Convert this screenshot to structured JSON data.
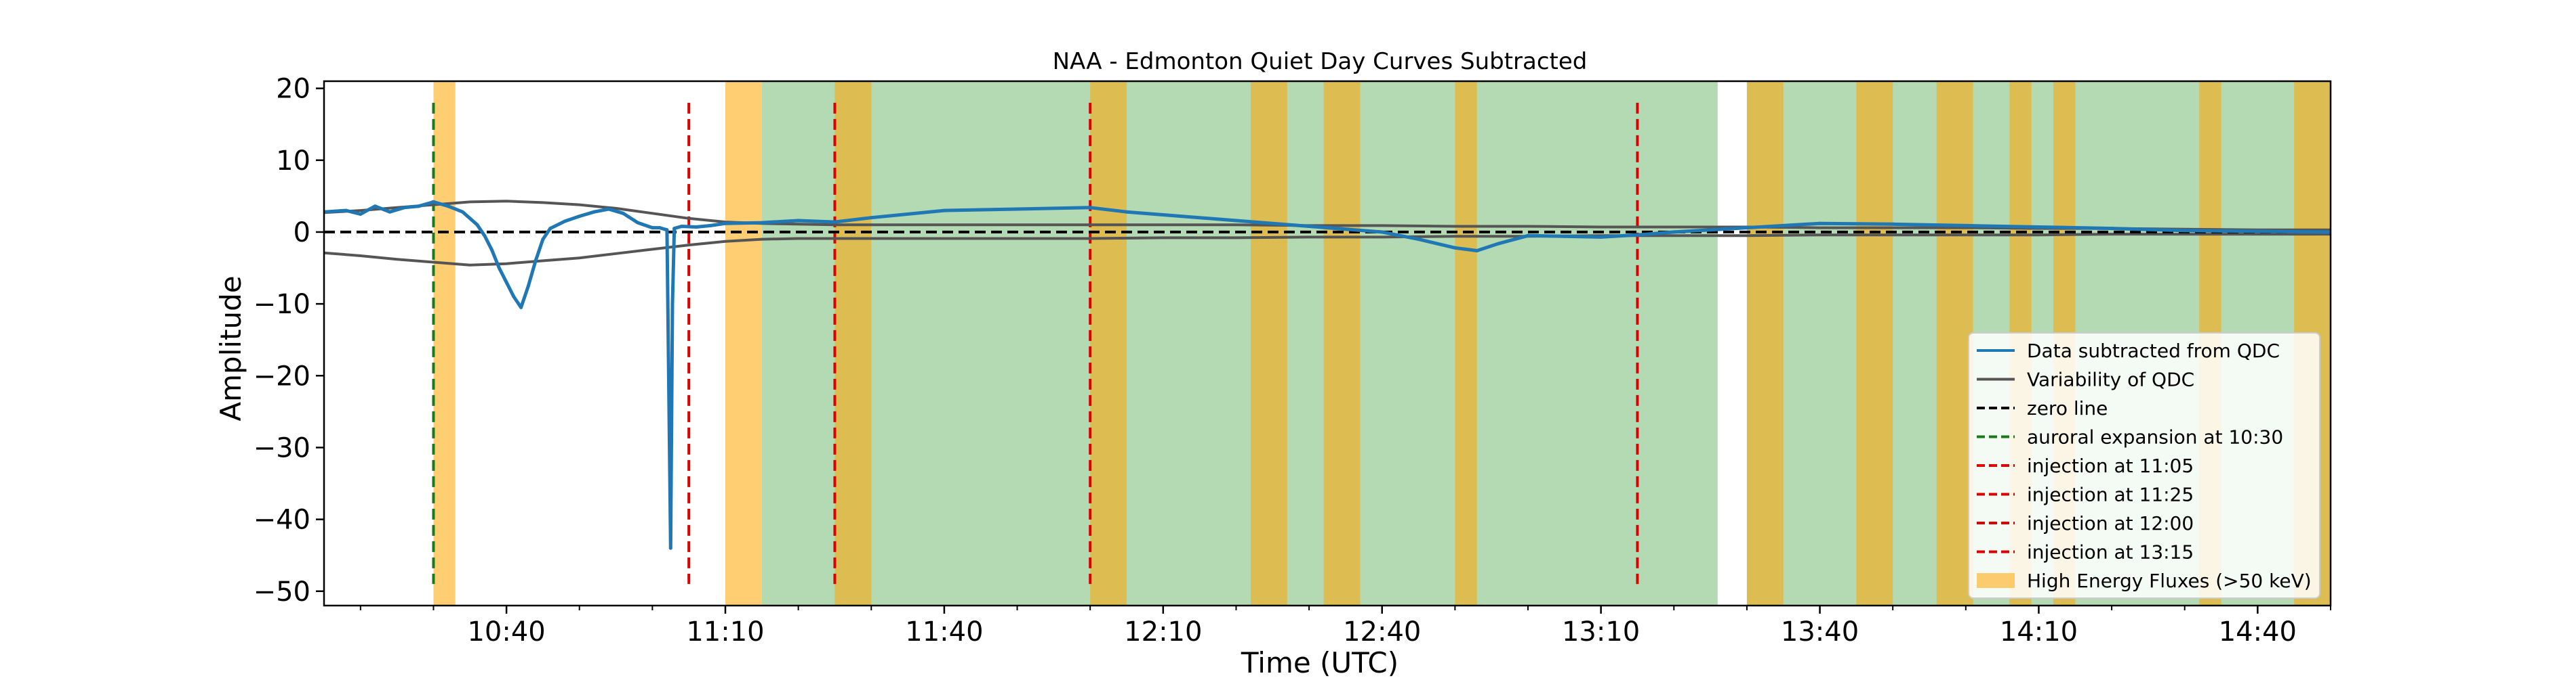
{
  "chart_data": {
    "type": "line",
    "title": "NAA - Edmonton  Quiet Day Curves Subtracted",
    "xlabel": "Time (UTC)",
    "ylabel": "Amplitude",
    "x_unit": "UTC time (HH:MM)",
    "xlim": [
      "10:15",
      "14:50"
    ],
    "ylim": [
      -52,
      21
    ],
    "x_ticks": [
      {
        "value": "10:40",
        "label": "10:40"
      },
      {
        "value": "11:10",
        "label": "11:10"
      },
      {
        "value": "11:40",
        "label": "11:40"
      },
      {
        "value": "12:10",
        "label": "12:10"
      },
      {
        "value": "12:40",
        "label": "12:40"
      },
      {
        "value": "13:10",
        "label": "13:10"
      },
      {
        "value": "13:40",
        "label": "13:40"
      },
      {
        "value": "14:10",
        "label": "14:10"
      },
      {
        "value": "14:40",
        "label": "14:40"
      }
    ],
    "y_ticks": [
      {
        "value": 20,
        "label": "20"
      },
      {
        "value": 10,
        "label": "10"
      },
      {
        "value": 0,
        "label": "0"
      },
      {
        "value": -10,
        "label": "−10"
      },
      {
        "value": -20,
        "label": "−20"
      },
      {
        "value": -30,
        "label": "−30"
      },
      {
        "value": -40,
        "label": "−40"
      },
      {
        "value": -50,
        "label": "−50"
      }
    ],
    "grid": false,
    "legend_position": "lower right",
    "colors": {
      "data": "#1f77b4",
      "variability": "#555555",
      "zero": "#000000",
      "auroral": "#1a7a1a",
      "injection": "#dd0000",
      "hef": "#ffa500",
      "background": "#4aa64a"
    },
    "background_spans": [
      {
        "start": "11:15",
        "end": "13:26"
      },
      {
        "start": "13:30",
        "end": "14:50"
      }
    ],
    "high_energy_spans": [
      {
        "start": "10:30",
        "end": "10:33"
      },
      {
        "start": "11:10",
        "end": "11:15"
      },
      {
        "start": "11:25",
        "end": "11:30"
      },
      {
        "start": "12:00",
        "end": "12:05"
      },
      {
        "start": "12:22",
        "end": "12:27"
      },
      {
        "start": "12:32",
        "end": "12:37"
      },
      {
        "start": "12:50",
        "end": "12:53"
      },
      {
        "start": "13:30",
        "end": "13:35"
      },
      {
        "start": "13:45",
        "end": "13:50"
      },
      {
        "start": "13:56",
        "end": "14:01"
      },
      {
        "start": "14:06",
        "end": "14:09"
      },
      {
        "start": "14:12",
        "end": "14:15"
      },
      {
        "start": "14:32",
        "end": "14:35"
      },
      {
        "start": "14:45",
        "end": "14:50"
      }
    ],
    "vertical_lines": [
      {
        "time": "10:30",
        "ymin": -49,
        "ymax": 18,
        "color": "#1a7a1a",
        "label": "auroral expansion at 10:30"
      },
      {
        "time": "11:05",
        "ymin": -49,
        "ymax": 18,
        "color": "#dd0000",
        "label": "injection at 11:05"
      },
      {
        "time": "11:25",
        "ymin": -49,
        "ymax": 18,
        "color": "#dd0000",
        "label": "injection at 11:25"
      },
      {
        "time": "12:00",
        "ymin": -49,
        "ymax": 18,
        "color": "#dd0000",
        "label": "injection at 12:00"
      },
      {
        "time": "13:15",
        "ymin": -49,
        "ymax": 18,
        "color": "#dd0000",
        "label": "injection at 13:15"
      }
    ],
    "series": [
      {
        "name": "Data subtracted from QDC",
        "x": [
          "10:15",
          "10:18",
          "10:20",
          "10:22",
          "10:24",
          "10:26",
          "10:28",
          "10:30",
          "10:32",
          "10:34",
          "10:36",
          "10:37",
          "10:38",
          "10:39",
          "10:40",
          "10:41",
          "10:42",
          "10:43",
          "10:44",
          "10:45",
          "10:46",
          "10:48",
          "10:50",
          "10:52",
          "10:54",
          "10:56",
          "10:58",
          "11:00",
          "11:01",
          "11:02",
          "11:02:30",
          "11:02:45",
          "11:03",
          "11:04",
          "11:06",
          "11:08",
          "11:10",
          "11:15",
          "11:20",
          "11:25",
          "11:30",
          "11:40",
          "11:50",
          "12:00",
          "12:05",
          "12:10",
          "12:20",
          "12:30",
          "12:40",
          "12:45",
          "12:50",
          "12:53",
          "12:56",
          "13:00",
          "13:05",
          "13:10",
          "13:15",
          "13:20",
          "13:30",
          "13:40",
          "13:50",
          "14:00",
          "14:10",
          "14:20",
          "14:30",
          "14:40",
          "14:50"
        ],
        "values": [
          2.8,
          3.0,
          2.5,
          3.6,
          2.8,
          3.4,
          3.6,
          4.2,
          3.6,
          2.8,
          1.0,
          -0.5,
          -2.5,
          -5.0,
          -7.0,
          -9.0,
          -10.5,
          -7.5,
          -4.0,
          -1.0,
          0.5,
          1.5,
          2.2,
          2.8,
          3.2,
          2.6,
          1.3,
          0.6,
          0.6,
          0.3,
          -44.0,
          -10.0,
          0.5,
          0.8,
          0.7,
          0.9,
          1.2,
          1.3,
          1.6,
          1.4,
          2.0,
          3.0,
          3.2,
          3.4,
          2.8,
          2.4,
          1.6,
          0.8,
          0.0,
          -1.0,
          -2.2,
          -2.6,
          -1.6,
          -0.5,
          -0.6,
          -0.7,
          -0.4,
          0.0,
          0.6,
          1.2,
          1.1,
          0.9,
          0.7,
          0.5,
          0.2,
          0.1,
          0.0
        ]
      },
      {
        "name": "Variability of QDC",
        "x": [
          "10:15",
          "10:20",
          "10:25",
          "10:30",
          "10:35",
          "10:40",
          "10:45",
          "10:50",
          "10:55",
          "11:00",
          "11:05",
          "11:10",
          "11:15",
          "11:20",
          "11:25",
          "11:30",
          "11:40",
          "11:50",
          "12:00",
          "12:10",
          "12:20",
          "12:30",
          "12:40",
          "12:50",
          "13:00",
          "13:10",
          "13:20",
          "13:30",
          "13:40",
          "13:50",
          "14:00",
          "14:10",
          "14:20",
          "14:30",
          "14:40",
          "14:50"
        ],
        "upper": [
          2.7,
          3.0,
          3.4,
          3.8,
          4.2,
          4.3,
          4.1,
          3.8,
          3.3,
          2.6,
          1.9,
          1.4,
          1.2,
          1.1,
          1.0,
          1.0,
          1.0,
          1.0,
          1.0,
          1.0,
          1.0,
          0.9,
          0.9,
          0.8,
          0.8,
          0.7,
          0.7,
          0.7,
          0.6,
          0.6,
          0.6,
          0.5,
          0.5,
          0.4,
          0.3,
          0.3
        ],
        "lower": [
          -2.9,
          -3.3,
          -3.8,
          -4.2,
          -4.6,
          -4.4,
          -4.0,
          -3.6,
          -3.0,
          -2.4,
          -1.8,
          -1.3,
          -1.0,
          -0.9,
          -0.9,
          -0.9,
          -0.9,
          -0.9,
          -0.9,
          -0.8,
          -0.8,
          -0.7,
          -0.7,
          -0.6,
          -0.6,
          -0.5,
          -0.5,
          -0.5,
          -0.4,
          -0.4,
          -0.4,
          -0.4,
          -0.3,
          -0.3,
          -0.3,
          -0.3
        ]
      },
      {
        "name": "zero line",
        "x": [
          "10:15",
          "14:50"
        ],
        "values": [
          0,
          0
        ]
      }
    ],
    "legend": [
      {
        "label": "Data subtracted from QDC",
        "kind": "line",
        "color": "#1f77b4",
        "dash": ""
      },
      {
        "label": "Variability of QDC",
        "kind": "line",
        "color": "#555555",
        "dash": ""
      },
      {
        "label": "zero line",
        "kind": "line",
        "color": "#000000",
        "dash": "dash"
      },
      {
        "label": "auroral expansion at 10:30",
        "kind": "line",
        "color": "#1a7a1a",
        "dash": "dash"
      },
      {
        "label": "injection at 11:05",
        "kind": "line",
        "color": "#dd0000",
        "dash": "dash"
      },
      {
        "label": "injection at 11:25",
        "kind": "line",
        "color": "#dd0000",
        "dash": "dash"
      },
      {
        "label": "injection at 12:00",
        "kind": "line",
        "color": "#dd0000",
        "dash": "dash"
      },
      {
        "label": "injection at 13:15",
        "kind": "line",
        "color": "#dd0000",
        "dash": "dash"
      },
      {
        "label": "High Energy Fluxes (>50 keV)",
        "kind": "patch",
        "color": "#ffa500",
        "dash": ""
      }
    ]
  }
}
